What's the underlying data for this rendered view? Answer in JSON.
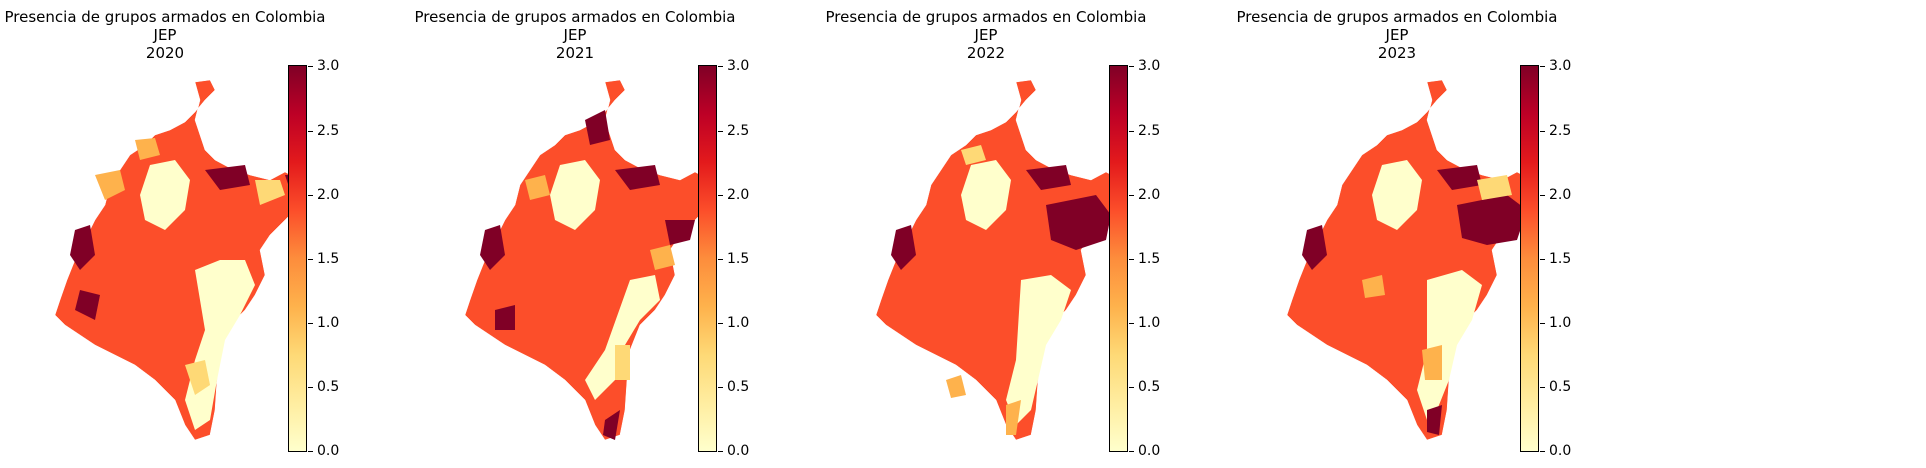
{
  "panels": [
    {
      "title_line1": "Presencia de grupos armados en Colombia",
      "title_line2": "JEP",
      "title_line3": "2020"
    },
    {
      "title_line1": "Presencia de grupos armados en Colombia",
      "title_line2": "JEP",
      "title_line3": "2021"
    },
    {
      "title_line1": "Presencia de grupos armados en Colombia",
      "title_line2": "JEP",
      "title_line3": "2022"
    },
    {
      "title_line1": "Presencia de grupos armados en Colombia",
      "title_line2": "JEP",
      "title_line3": "2023"
    }
  ],
  "colorbar": {
    "colormap": "YlOrRd",
    "range": [
      0.0,
      3.0
    ],
    "ticks": [
      "0.0",
      "0.5",
      "1.0",
      "1.5",
      "2.0",
      "2.5",
      "3.0"
    ]
  },
  "colors": {
    "lightest": "#ffffcc",
    "darkest": "#800026"
  }
}
